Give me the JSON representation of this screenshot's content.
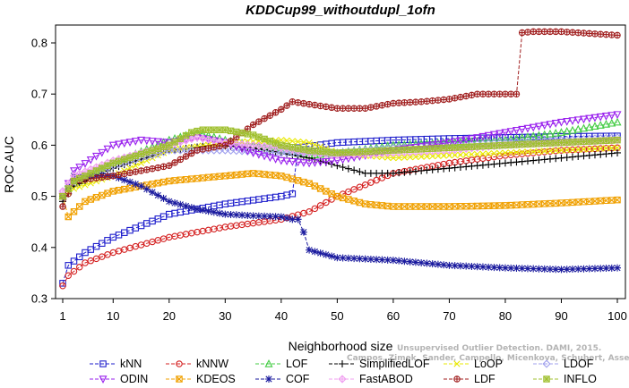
{
  "chart_data": {
    "type": "line",
    "title": "KDDCup99_withoutdupl_1ofn",
    "xlabel": "Neighborhood size",
    "ylabel": "ROC AUC",
    "xlim": [
      1,
      100
    ],
    "ylim": [
      0.3,
      0.85
    ],
    "x_ticks": [
      1,
      10,
      20,
      30,
      40,
      50,
      60,
      70,
      80,
      90,
      100
    ],
    "y_ticks": [
      0.3,
      0.4,
      0.5,
      0.6,
      0.7,
      0.8
    ],
    "x_tick_labels": [
      "1",
      "10",
      "20",
      "30",
      "40",
      "50",
      "60",
      "70",
      "80",
      "90",
      "100"
    ],
    "y_tick_labels": [
      "0.3",
      "0.4",
      "0.5",
      "0.6",
      "0.7",
      "0.8"
    ],
    "grid": false,
    "legend_position": "bottom",
    "series": [
      {
        "name": "kNN",
        "color": "#1e1ecc",
        "marker": "square",
        "x": [
          1,
          2,
          5,
          10,
          20,
          30,
          40,
          42,
          43,
          50,
          60,
          70,
          80,
          90,
          100
        ],
        "values": [
          0.33,
          0.365,
          0.39,
          0.42,
          0.465,
          0.485,
          0.5,
          0.505,
          0.595,
          0.605,
          0.61,
          0.613,
          0.615,
          0.617,
          0.618
        ]
      },
      {
        "name": "kNNW",
        "color": "#d42020",
        "marker": "circle",
        "x": [
          1,
          2,
          5,
          10,
          20,
          30,
          40,
          45,
          50,
          60,
          70,
          80,
          90,
          100
        ],
        "values": [
          0.325,
          0.345,
          0.37,
          0.39,
          0.42,
          0.44,
          0.455,
          0.47,
          0.5,
          0.545,
          0.565,
          0.58,
          0.59,
          0.595
        ]
      },
      {
        "name": "LOF",
        "color": "#44cc44",
        "marker": "triangle",
        "x": [
          1,
          3,
          10,
          20,
          25,
          30,
          40,
          45,
          50,
          60,
          70,
          80,
          90,
          100
        ],
        "values": [
          0.5,
          0.53,
          0.565,
          0.61,
          0.625,
          0.61,
          0.59,
          0.58,
          0.585,
          0.6,
          0.605,
          0.61,
          0.625,
          0.645
        ]
      },
      {
        "name": "SimplifiedLOF",
        "color": "#000000",
        "marker": "plus",
        "x": [
          1,
          3,
          10,
          20,
          28,
          35,
          40,
          45,
          50,
          55,
          60,
          65,
          70,
          80,
          90,
          100
        ],
        "values": [
          0.49,
          0.52,
          0.555,
          0.59,
          0.6,
          0.595,
          0.585,
          0.575,
          0.56,
          0.545,
          0.545,
          0.55,
          0.555,
          0.565,
          0.575,
          0.585
        ]
      },
      {
        "name": "LoOP",
        "color": "#e8e800",
        "marker": "x",
        "x": [
          1,
          3,
          10,
          20,
          30,
          40,
          45,
          50,
          60,
          70,
          80,
          90,
          100
        ],
        "values": [
          0.5,
          0.515,
          0.54,
          0.59,
          0.605,
          0.61,
          0.605,
          0.585,
          0.575,
          0.58,
          0.585,
          0.59,
          0.595
        ]
      },
      {
        "name": "LDOF",
        "color": "#a0a0ee",
        "marker": "diamond",
        "x": [
          1,
          3,
          10,
          20,
          30,
          40,
          50,
          60,
          70,
          80,
          90,
          100
        ],
        "values": [
          0.51,
          0.53,
          0.56,
          0.59,
          0.59,
          0.585,
          0.585,
          0.595,
          0.6,
          0.605,
          0.61,
          0.615
        ]
      },
      {
        "name": "ODIN",
        "color": "#9a22ee",
        "marker": "triangle-down",
        "x": [
          1,
          3,
          10,
          15,
          20,
          25,
          30,
          35,
          40,
          45,
          50,
          60,
          70,
          80,
          90,
          100
        ],
        "values": [
          0.5,
          0.55,
          0.6,
          0.61,
          0.605,
          0.615,
          0.605,
          0.585,
          0.57,
          0.565,
          0.57,
          0.59,
          0.605,
          0.625,
          0.645,
          0.66
        ]
      },
      {
        "name": "KDEOS",
        "color": "#f0a000",
        "marker": "square-x",
        "x": [
          1,
          2,
          5,
          10,
          15,
          20,
          30,
          35,
          40,
          45,
          50,
          55,
          60,
          70,
          80,
          90,
          100
        ],
        "values": [
          0.5,
          0.46,
          0.49,
          0.51,
          0.52,
          0.53,
          0.54,
          0.545,
          0.54,
          0.525,
          0.5,
          0.485,
          0.48,
          0.48,
          0.482,
          0.487,
          0.493
        ]
      },
      {
        "name": "COF",
        "color": "#1a1a9e",
        "marker": "star",
        "x": [
          1,
          3,
          10,
          15,
          20,
          25,
          30,
          35,
          40,
          42,
          43,
          44,
          45,
          50,
          60,
          70,
          80,
          90,
          100
        ],
        "values": [
          0.5,
          0.54,
          0.54,
          0.52,
          0.49,
          0.475,
          0.465,
          0.462,
          0.46,
          0.455,
          0.455,
          0.43,
          0.395,
          0.38,
          0.375,
          0.365,
          0.36,
          0.357,
          0.36
        ]
      },
      {
        "name": "FastABOD",
        "color": "#f0a0f0",
        "marker": "diamond-plus",
        "x": [
          1,
          3,
          10,
          20,
          25,
          30,
          35,
          40,
          45,
          50,
          60,
          70,
          80,
          90,
          100
        ],
        "values": [
          0.51,
          0.54,
          0.57,
          0.6,
          0.615,
          0.605,
          0.6,
          0.595,
          0.585,
          0.58,
          0.585,
          0.59,
          0.6,
          0.605,
          0.61
        ]
      },
      {
        "name": "LDF",
        "color": "#a01e1e",
        "marker": "circle-plus",
        "x": [
          1,
          3,
          10,
          15,
          20,
          25,
          30,
          35,
          40,
          42,
          45,
          50,
          55,
          60,
          65,
          70,
          75,
          80,
          82,
          83,
          85,
          90,
          100
        ],
        "values": [
          0.48,
          0.53,
          0.54,
          0.55,
          0.56,
          0.59,
          0.6,
          0.64,
          0.67,
          0.685,
          0.68,
          0.672,
          0.672,
          0.682,
          0.685,
          0.69,
          0.7,
          0.7,
          0.7,
          0.82,
          0.822,
          0.822,
          0.815
        ]
      },
      {
        "name": "INFLO",
        "color": "#a0c030",
        "marker": "square-star",
        "x": [
          1,
          3,
          10,
          20,
          24,
          26,
          30,
          35,
          40,
          45,
          50,
          60,
          70,
          80,
          90,
          100
        ],
        "values": [
          0.5,
          0.53,
          0.565,
          0.6,
          0.625,
          0.63,
          0.63,
          0.62,
          0.6,
          0.59,
          0.585,
          0.59,
          0.595,
          0.6,
          0.605,
          0.61
        ]
      }
    ]
  },
  "legend": {
    "items": [
      {
        "label": "kNN",
        "color": "#1e1ecc",
        "marker": "square"
      },
      {
        "label": "kNNW",
        "color": "#d42020",
        "marker": "circle"
      },
      {
        "label": "LOF",
        "color": "#44cc44",
        "marker": "triangle"
      },
      {
        "label": "SimplifiedLOF",
        "color": "#000000",
        "marker": "plus"
      },
      {
        "label": "LoOP",
        "color": "#e8e800",
        "marker": "x"
      },
      {
        "label": "LDOF",
        "color": "#a0a0ee",
        "marker": "diamond"
      },
      {
        "label": "ODIN",
        "color": "#9a22ee",
        "marker": "triangle-down"
      },
      {
        "label": "KDEOS",
        "color": "#f0a000",
        "marker": "square-x"
      },
      {
        "label": "COF",
        "color": "#1a1a9e",
        "marker": "star"
      },
      {
        "label": "FastABOD",
        "color": "#f0a0f0",
        "marker": "diamond-plus"
      },
      {
        "label": "LDF",
        "color": "#a01e1e",
        "marker": "circle-plus"
      },
      {
        "label": "INFLO",
        "color": "#a0c030",
        "marker": "square-star"
      }
    ]
  },
  "watermark": {
    "line1": "Unsupervised Outlier Detection. DAMI, 2015.",
    "line2": "Campos, Zimek, Sander, Campello, Micenkova, Schubert, Assent, Houle"
  }
}
